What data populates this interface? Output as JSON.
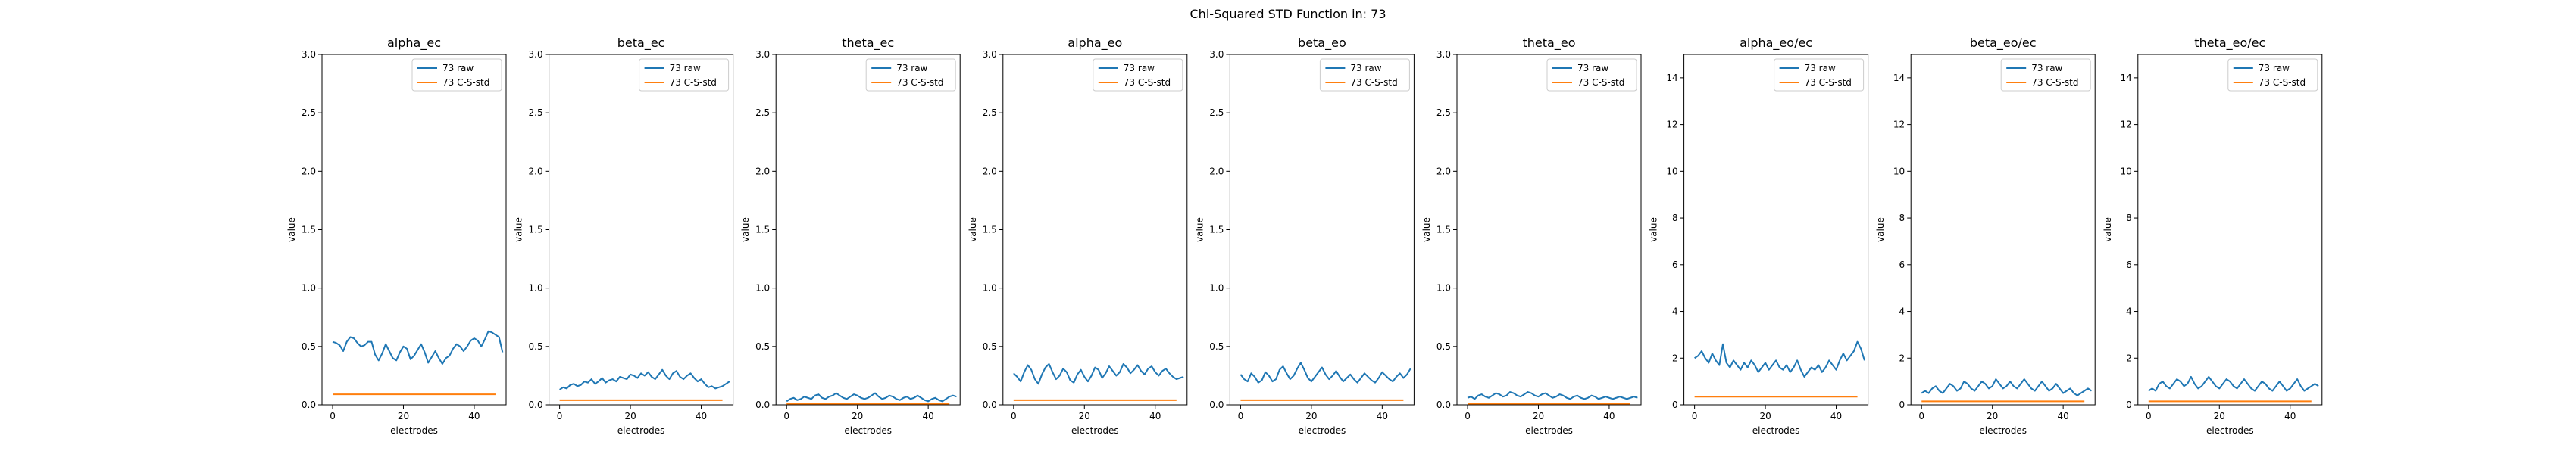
{
  "figure": {
    "suptitle": "Chi-Squared STD Function in: 73"
  },
  "colors": {
    "raw": "#1f77b4",
    "std": "#ff7f0e"
  },
  "chart_data": [
    {
      "type": "line",
      "title": "alpha_ec",
      "xlabel": "electrodes",
      "ylabel": "value",
      "xlim": [
        -3,
        49
      ],
      "ylim": [
        0,
        3.0
      ],
      "xticks": [
        0,
        20,
        40
      ],
      "yticks": [
        0.0,
        0.5,
        1.0,
        1.5,
        2.0,
        2.5,
        3.0
      ],
      "yticklabels": [
        "0.0",
        "0.5",
        "1.0",
        "1.5",
        "2.0",
        "2.5",
        "3.0"
      ],
      "legend": "top-right",
      "series": [
        {
          "name": "73 raw",
          "values": [
            0.54,
            0.53,
            0.51,
            0.46,
            0.54,
            0.58,
            0.57,
            0.53,
            0.5,
            0.51,
            0.54,
            0.54,
            0.43,
            0.38,
            0.44,
            0.52,
            0.46,
            0.4,
            0.38,
            0.45,
            0.5,
            0.48,
            0.39,
            0.42,
            0.47,
            0.52,
            0.45,
            0.36,
            0.41,
            0.46,
            0.4,
            0.35,
            0.4,
            0.42,
            0.48,
            0.52,
            0.5,
            0.46,
            0.5,
            0.55,
            0.57,
            0.55,
            0.5,
            0.56,
            0.63,
            0.62,
            0.6,
            0.58,
            0.45
          ]
        },
        {
          "name": "73 C-S-std",
          "values": [
            0.09,
            0.09
          ]
        }
      ]
    },
    {
      "type": "line",
      "title": "beta_ec",
      "xlabel": "electrodes",
      "ylabel": "value",
      "xlim": [
        -3,
        49
      ],
      "ylim": [
        0,
        3.0
      ],
      "xticks": [
        0,
        20,
        40
      ],
      "yticks": [
        0.0,
        0.5,
        1.0,
        1.5,
        2.0,
        2.5,
        3.0
      ],
      "yticklabels": [
        "0.0",
        "0.5",
        "1.0",
        "1.5",
        "2.0",
        "2.5",
        "3.0"
      ],
      "legend": "top-right",
      "series": [
        {
          "name": "73 raw",
          "values": [
            0.13,
            0.15,
            0.14,
            0.17,
            0.18,
            0.16,
            0.17,
            0.2,
            0.19,
            0.22,
            0.18,
            0.2,
            0.23,
            0.19,
            0.21,
            0.22,
            0.2,
            0.24,
            0.23,
            0.22,
            0.26,
            0.25,
            0.23,
            0.27,
            0.25,
            0.28,
            0.24,
            0.22,
            0.26,
            0.3,
            0.25,
            0.22,
            0.27,
            0.29,
            0.24,
            0.22,
            0.25,
            0.27,
            0.23,
            0.2,
            0.22,
            0.18,
            0.15,
            0.16,
            0.14,
            0.15,
            0.16,
            0.18,
            0.2
          ]
        },
        {
          "name": "73 C-S-std",
          "values": [
            0.04,
            0.04
          ]
        }
      ]
    },
    {
      "type": "line",
      "title": "theta_ec",
      "xlabel": "electrodes",
      "ylabel": "value",
      "xlim": [
        -3,
        49
      ],
      "ylim": [
        0,
        3.0
      ],
      "xticks": [
        0,
        20,
        40
      ],
      "yticks": [
        0.0,
        0.5,
        1.0,
        1.5,
        2.0,
        2.5,
        3.0
      ],
      "yticklabels": [
        "0.0",
        "0.5",
        "1.0",
        "1.5",
        "2.0",
        "2.5",
        "3.0"
      ],
      "legend": "top-right",
      "series": [
        {
          "name": "73 raw",
          "values": [
            0.03,
            0.05,
            0.06,
            0.04,
            0.05,
            0.07,
            0.06,
            0.05,
            0.08,
            0.09,
            0.06,
            0.05,
            0.07,
            0.08,
            0.1,
            0.08,
            0.06,
            0.05,
            0.07,
            0.09,
            0.08,
            0.06,
            0.05,
            0.06,
            0.08,
            0.1,
            0.07,
            0.05,
            0.06,
            0.08,
            0.07,
            0.05,
            0.04,
            0.06,
            0.07,
            0.05,
            0.06,
            0.08,
            0.06,
            0.04,
            0.03,
            0.05,
            0.06,
            0.04,
            0.03,
            0.05,
            0.07,
            0.08,
            0.07
          ]
        },
        {
          "name": "73 C-S-std",
          "values": [
            0.01,
            0.01
          ]
        }
      ]
    },
    {
      "type": "line",
      "title": "alpha_eo",
      "xlabel": "electrodes",
      "ylabel": "value",
      "xlim": [
        -3,
        49
      ],
      "ylim": [
        0,
        3.0
      ],
      "xticks": [
        0,
        20,
        40
      ],
      "yticks": [
        0.0,
        0.5,
        1.0,
        1.5,
        2.0,
        2.5,
        3.0
      ],
      "yticklabels": [
        "0.0",
        "0.5",
        "1.0",
        "1.5",
        "2.0",
        "2.5",
        "3.0"
      ],
      "legend": "top-right",
      "series": [
        {
          "name": "73 raw",
          "values": [
            0.27,
            0.24,
            0.2,
            0.28,
            0.34,
            0.3,
            0.22,
            0.18,
            0.26,
            0.32,
            0.35,
            0.28,
            0.22,
            0.25,
            0.31,
            0.28,
            0.21,
            0.19,
            0.26,
            0.3,
            0.24,
            0.2,
            0.25,
            0.32,
            0.3,
            0.23,
            0.27,
            0.33,
            0.29,
            0.25,
            0.28,
            0.35,
            0.32,
            0.27,
            0.3,
            0.34,
            0.29,
            0.26,
            0.31,
            0.33,
            0.28,
            0.25,
            0.29,
            0.31,
            0.27,
            0.24,
            0.22,
            0.23,
            0.24
          ]
        },
        {
          "name": "73 C-S-std",
          "values": [
            0.04,
            0.04
          ]
        }
      ]
    },
    {
      "type": "line",
      "title": "beta_eo",
      "xlabel": "electrodes",
      "ylabel": "value",
      "xlim": [
        -3,
        49
      ],
      "ylim": [
        0,
        3.0
      ],
      "xticks": [
        0,
        20,
        40
      ],
      "yticks": [
        0.0,
        0.5,
        1.0,
        1.5,
        2.0,
        2.5,
        3.0
      ],
      "yticklabels": [
        "0.0",
        "0.5",
        "1.0",
        "1.5",
        "2.0",
        "2.5",
        "3.0"
      ],
      "legend": "top-right",
      "series": [
        {
          "name": "73 raw",
          "values": [
            0.26,
            0.22,
            0.2,
            0.27,
            0.24,
            0.19,
            0.21,
            0.28,
            0.25,
            0.2,
            0.22,
            0.3,
            0.33,
            0.27,
            0.22,
            0.25,
            0.31,
            0.36,
            0.3,
            0.23,
            0.2,
            0.24,
            0.28,
            0.32,
            0.26,
            0.22,
            0.25,
            0.29,
            0.24,
            0.2,
            0.23,
            0.26,
            0.22,
            0.19,
            0.23,
            0.27,
            0.24,
            0.21,
            0.19,
            0.23,
            0.28,
            0.25,
            0.22,
            0.2,
            0.24,
            0.27,
            0.23,
            0.26,
            0.31
          ]
        },
        {
          "name": "73 C-S-std",
          "values": [
            0.04,
            0.04
          ]
        }
      ]
    },
    {
      "type": "line",
      "title": "theta_eo",
      "xlabel": "electrodes",
      "ylabel": "value",
      "xlim": [
        -3,
        49
      ],
      "ylim": [
        0,
        3.0
      ],
      "xticks": [
        0,
        20,
        40
      ],
      "yticks": [
        0.0,
        0.5,
        1.0,
        1.5,
        2.0,
        2.5,
        3.0
      ],
      "yticklabels": [
        "0.0",
        "0.5",
        "1.0",
        "1.5",
        "2.0",
        "2.5",
        "3.0"
      ],
      "legend": "top-right",
      "series": [
        {
          "name": "73 raw",
          "values": [
            0.06,
            0.07,
            0.05,
            0.08,
            0.09,
            0.07,
            0.06,
            0.08,
            0.1,
            0.09,
            0.07,
            0.08,
            0.11,
            0.1,
            0.08,
            0.07,
            0.09,
            0.11,
            0.1,
            0.08,
            0.07,
            0.09,
            0.1,
            0.08,
            0.06,
            0.07,
            0.09,
            0.08,
            0.06,
            0.05,
            0.07,
            0.08,
            0.06,
            0.05,
            0.06,
            0.08,
            0.07,
            0.05,
            0.06,
            0.07,
            0.06,
            0.05,
            0.06,
            0.07,
            0.06,
            0.05,
            0.06,
            0.07,
            0.06
          ]
        },
        {
          "name": "73 C-S-std",
          "values": [
            0.01,
            0.01
          ]
        }
      ]
    },
    {
      "type": "line",
      "title": "alpha_eo/ec",
      "xlabel": "electrodes",
      "ylabel": "value",
      "xlim": [
        -3,
        49
      ],
      "ylim": [
        0,
        15
      ],
      "xticks": [
        0,
        20,
        40
      ],
      "yticks": [
        0,
        2,
        4,
        6,
        8,
        10,
        12,
        14
      ],
      "yticklabels": [
        "0",
        "2",
        "4",
        "6",
        "8",
        "10",
        "12",
        "14"
      ],
      "legend": "top-right",
      "series": [
        {
          "name": "73 raw",
          "values": [
            2.0,
            2.1,
            2.3,
            2.0,
            1.8,
            2.2,
            1.9,
            1.7,
            2.6,
            1.8,
            1.6,
            1.9,
            1.7,
            1.5,
            1.8,
            1.6,
            1.9,
            1.7,
            1.4,
            1.6,
            1.8,
            1.5,
            1.7,
            1.9,
            1.6,
            1.5,
            1.7,
            1.4,
            1.6,
            1.9,
            1.5,
            1.2,
            1.4,
            1.6,
            1.5,
            1.7,
            1.4,
            1.6,
            1.9,
            1.7,
            1.5,
            1.9,
            2.2,
            1.9,
            2.1,
            2.3,
            2.7,
            2.4,
            1.9
          ]
        },
        {
          "name": "73 C-S-std",
          "values": [
            0.35,
            0.35
          ]
        }
      ]
    },
    {
      "type": "line",
      "title": "beta_eo/ec",
      "xlabel": "electrodes",
      "ylabel": "value",
      "xlim": [
        -3,
        49
      ],
      "ylim": [
        0,
        15
      ],
      "xticks": [
        0,
        20,
        40
      ],
      "yticks": [
        0,
        2,
        4,
        6,
        8,
        10,
        12,
        14
      ],
      "yticklabels": [
        "0",
        "2",
        "4",
        "6",
        "8",
        "10",
        "12",
        "14"
      ],
      "legend": "top-right",
      "series": [
        {
          "name": "73 raw",
          "values": [
            0.5,
            0.6,
            0.5,
            0.7,
            0.8,
            0.6,
            0.5,
            0.7,
            0.9,
            0.8,
            0.6,
            0.7,
            1.0,
            0.9,
            0.7,
            0.6,
            0.8,
            1.0,
            0.9,
            0.7,
            0.8,
            1.1,
            0.9,
            0.7,
            0.8,
            1.0,
            0.8,
            0.7,
            0.9,
            1.1,
            0.9,
            0.7,
            0.6,
            0.8,
            1.0,
            0.8,
            0.6,
            0.7,
            0.9,
            0.7,
            0.5,
            0.6,
            0.7,
            0.5,
            0.4,
            0.5,
            0.6,
            0.7,
            0.6
          ]
        },
        {
          "name": "73 C-S-std",
          "values": [
            0.15,
            0.15
          ]
        }
      ]
    },
    {
      "type": "line",
      "title": "theta_eo/ec",
      "xlabel": "electrodes",
      "ylabel": "value",
      "xlim": [
        -3,
        49
      ],
      "ylim": [
        0,
        15
      ],
      "xticks": [
        0,
        20,
        40
      ],
      "yticks": [
        0,
        2,
        4,
        6,
        8,
        10,
        12,
        14
      ],
      "yticklabels": [
        "0",
        "2",
        "4",
        "6",
        "8",
        "10",
        "12",
        "14"
      ],
      "legend": "top-right",
      "series": [
        {
          "name": "73 raw",
          "values": [
            0.6,
            0.7,
            0.6,
            0.9,
            1.0,
            0.8,
            0.7,
            0.9,
            1.1,
            1.0,
            0.8,
            0.9,
            1.2,
            0.9,
            0.7,
            0.8,
            1.0,
            1.2,
            1.0,
            0.8,
            0.7,
            0.9,
            1.1,
            1.0,
            0.8,
            0.7,
            0.9,
            1.1,
            0.9,
            0.7,
            0.6,
            0.8,
            1.0,
            0.9,
            0.7,
            0.6,
            0.8,
            1.0,
            0.8,
            0.6,
            0.7,
            0.9,
            1.1,
            0.8,
            0.6,
            0.7,
            0.8,
            0.9,
            0.8
          ]
        },
        {
          "name": "73 C-S-std",
          "values": [
            0.15,
            0.15
          ]
        }
      ]
    }
  ]
}
